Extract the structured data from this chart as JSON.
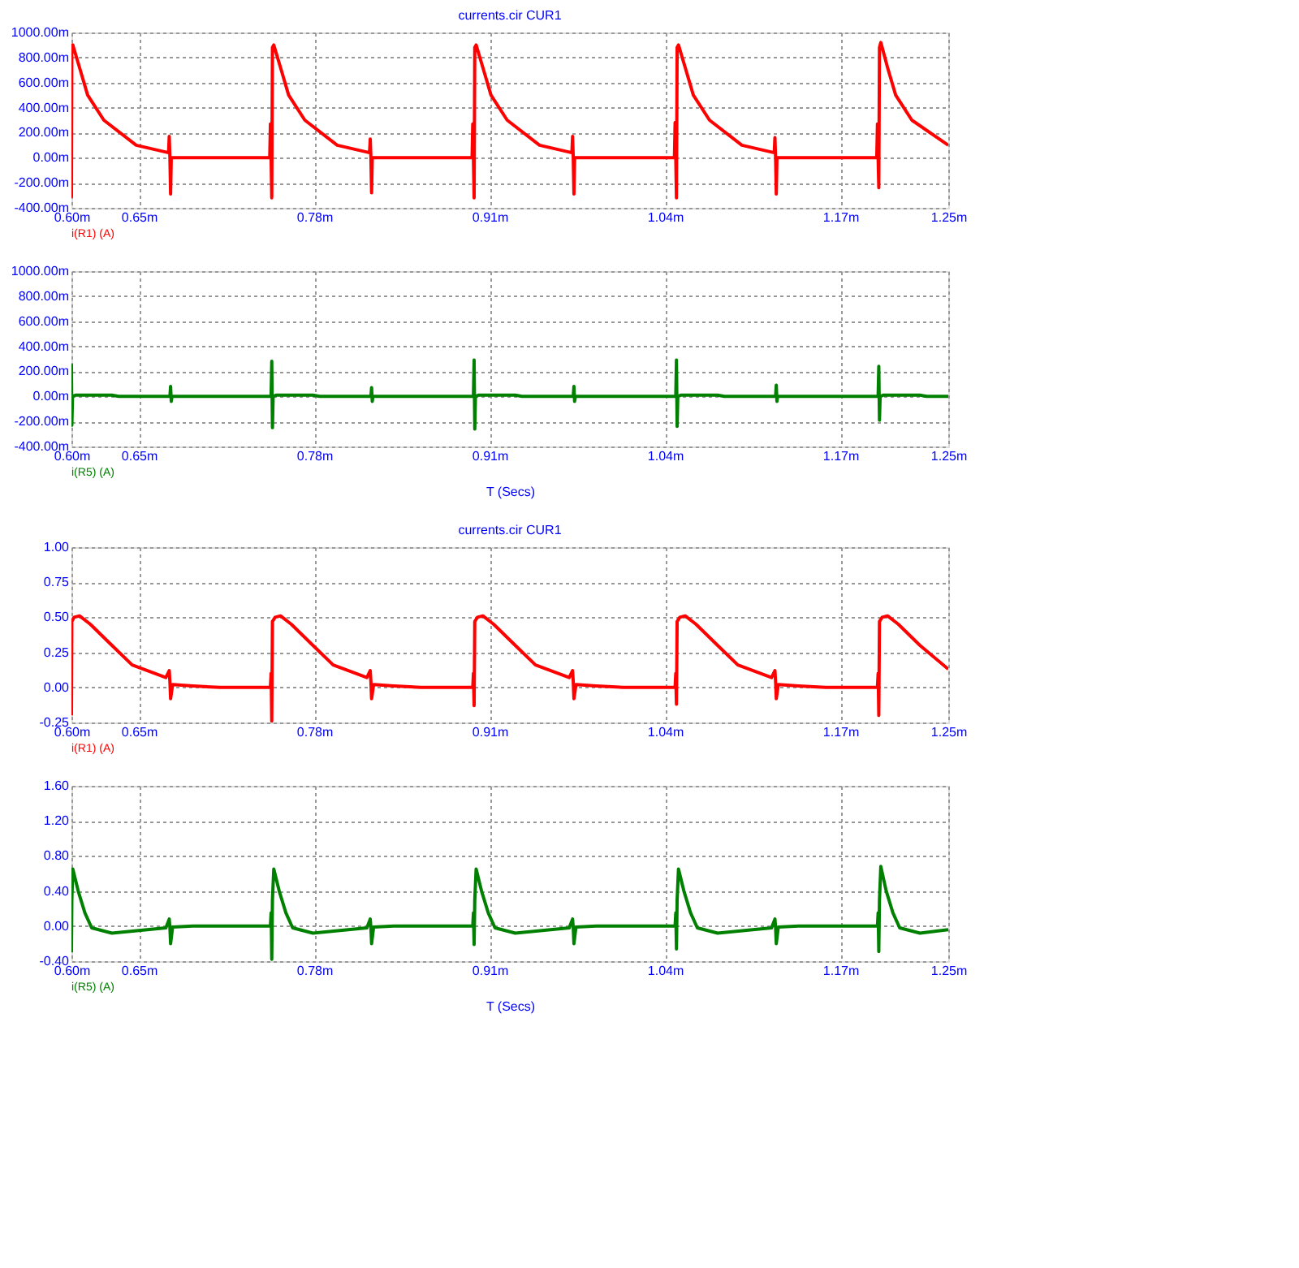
{
  "chart_data": [
    {
      "type": "line",
      "title": "currents.cir CUR1",
      "legend": "bottom left",
      "grid": true,
      "xlim": [
        0.6,
        1.25
      ],
      "xticks": [
        {
          "value": 0.6,
          "label": "0.60m"
        },
        {
          "value": 0.65,
          "label": "0.65m"
        },
        {
          "value": 0.78,
          "label": "0.78m"
        },
        {
          "value": 0.91,
          "label": "0.91m"
        },
        {
          "value": 1.04,
          "label": "1.04m"
        },
        {
          "value": 1.17,
          "label": "1.17m"
        },
        {
          "value": 1.25,
          "label": "1.25m"
        }
      ],
      "ylim": [
        -400,
        1000
      ],
      "yticks": [
        {
          "value": -400,
          "label": "-400.00m"
        },
        {
          "value": -200,
          "label": "-200.00m"
        },
        {
          "value": 0,
          "label": "0.00m"
        },
        {
          "value": 200,
          "label": "200.00m"
        },
        {
          "value": 400,
          "label": "400.00m"
        },
        {
          "value": 600,
          "label": "600.00m"
        },
        {
          "value": 800,
          "label": "800.00m"
        },
        {
          "value": 1000,
          "label": "1000.00m"
        }
      ],
      "series": [
        {
          "name": "i(R1) (A)",
          "color": "#ff0000",
          "x": [
            0.6,
            0.6003,
            0.601,
            0.606,
            0.612,
            0.624,
            0.648,
            0.672,
            0.6725,
            0.673,
            0.6735,
            0.674,
            0.747,
            0.7475,
            0.748,
            0.7485,
            0.749,
            0.75,
            0.755,
            0.761,
            0.773,
            0.797,
            0.821,
            0.8215,
            0.822,
            0.8225,
            0.823,
            0.897,
            0.8975,
            0.898,
            0.8985,
            0.899,
            0.9,
            0.905,
            0.911,
            0.923,
            0.947,
            0.971,
            0.9715,
            0.972,
            0.9725,
            0.973,
            1.047,
            1.0475,
            1.048,
            1.0485,
            1.049,
            1.05,
            1.055,
            1.061,
            1.073,
            1.097,
            1.121,
            1.1215,
            1.122,
            1.1225,
            1.123,
            1.197,
            1.1975,
            1.198,
            1.1985,
            1.199,
            1.2,
            1.205,
            1.211,
            1.223,
            1.25
          ],
          "values": [
            -320,
            880,
            900,
            720,
            500,
            300,
            100,
            40,
            170,
            0,
            -290,
            0,
            0,
            270,
            0,
            -320,
            880,
            900,
            720,
            500,
            300,
            100,
            40,
            150,
            0,
            -280,
            0,
            0,
            270,
            0,
            -320,
            880,
            900,
            720,
            500,
            300,
            100,
            40,
            170,
            0,
            -290,
            0,
            0,
            280,
            0,
            -320,
            880,
            900,
            720,
            500,
            300,
            100,
            40,
            160,
            0,
            -290,
            0,
            0,
            270,
            0,
            -240,
            880,
            920,
            720,
            500,
            300,
            100
          ]
        }
      ]
    },
    {
      "type": "line",
      "xlabel": "T (Secs)",
      "legend": "bottom left",
      "grid": true,
      "xlim": [
        0.6,
        1.25
      ],
      "xticks": [
        {
          "value": 0.6,
          "label": "0.60m"
        },
        {
          "value": 0.65,
          "label": "0.65m"
        },
        {
          "value": 0.78,
          "label": "0.78m"
        },
        {
          "value": 0.91,
          "label": "0.91m"
        },
        {
          "value": 1.04,
          "label": "1.04m"
        },
        {
          "value": 1.17,
          "label": "1.17m"
        },
        {
          "value": 1.25,
          "label": "1.25m"
        }
      ],
      "ylim": [
        -400,
        1000
      ],
      "yticks": [
        {
          "value": -400,
          "label": "-400.00m"
        },
        {
          "value": -200,
          "label": "-200.00m"
        },
        {
          "value": 0,
          "label": "0.00m"
        },
        {
          "value": 200,
          "label": "200.00m"
        },
        {
          "value": 400,
          "label": "400.00m"
        },
        {
          "value": 600,
          "label": "600.00m"
        },
        {
          "value": 800,
          "label": "800.00m"
        },
        {
          "value": 1000,
          "label": "1000.00m"
        }
      ],
      "series": [
        {
          "name": "i(R5) (A)",
          "color": "#008000",
          "x": [
            0.6,
            0.6003,
            0.6008,
            0.603,
            0.63,
            0.635,
            0.673,
            0.6735,
            0.674,
            0.6745,
            0.748,
            0.7485,
            0.749,
            0.7495,
            0.752,
            0.779,
            0.784,
            0.822,
            0.8225,
            0.823,
            0.8235,
            0.898,
            0.8985,
            0.899,
            0.8995,
            0.902,
            0.929,
            0.934,
            0.972,
            0.9725,
            0.973,
            0.9735,
            1.048,
            1.0485,
            1.049,
            1.0495,
            1.052,
            1.079,
            1.084,
            1.122,
            1.1225,
            1.123,
            1.1235,
            1.198,
            1.1985,
            1.199,
            1.1995,
            1.202,
            1.229,
            1.234,
            1.25
          ],
          "values": [
            260,
            -230,
            0,
            10,
            10,
            0,
            0,
            80,
            -40,
            0,
            0,
            280,
            -250,
            0,
            10,
            10,
            0,
            0,
            70,
            -40,
            0,
            0,
            290,
            -260,
            0,
            10,
            10,
            0,
            0,
            80,
            -40,
            0,
            0,
            290,
            -240,
            0,
            10,
            10,
            0,
            0,
            90,
            -40,
            0,
            0,
            240,
            -190,
            0,
            10,
            10,
            0,
            0
          ]
        }
      ]
    },
    {
      "type": "line",
      "title": "currents.cir CUR1",
      "legend": "bottom left",
      "grid": true,
      "xlim": [
        0.6,
        1.25
      ],
      "xticks": [
        {
          "value": 0.6,
          "label": "0.60m"
        },
        {
          "value": 0.65,
          "label": "0.65m"
        },
        {
          "value": 0.78,
          "label": "0.78m"
        },
        {
          "value": 0.91,
          "label": "0.91m"
        },
        {
          "value": 1.04,
          "label": "1.04m"
        },
        {
          "value": 1.17,
          "label": "1.17m"
        },
        {
          "value": 1.25,
          "label": "1.25m"
        }
      ],
      "ylim": [
        -0.25,
        1.0
      ],
      "yticks": [
        {
          "value": -0.25,
          "label": "-0.25"
        },
        {
          "value": 0,
          "label": "0.00"
        },
        {
          "value": 0.25,
          "label": "0.25"
        },
        {
          "value": 0.5,
          "label": "0.50"
        },
        {
          "value": 0.75,
          "label": "0.75"
        },
        {
          "value": 1.0,
          "label": "1.00"
        }
      ],
      "series": [
        {
          "name": "i(R1) (A)",
          "color": "#ff0000",
          "x": [
            0.6,
            0.6003,
            0.602,
            0.606,
            0.614,
            0.63,
            0.645,
            0.67,
            0.6725,
            0.673,
            0.6735,
            0.675,
            0.69,
            0.71,
            0.7475,
            0.748,
            0.7482,
            0.7485,
            0.749,
            0.751,
            0.755,
            0.763,
            0.779,
            0.794,
            0.819,
            0.8215,
            0.822,
            0.8225,
            0.824,
            0.839,
            0.859,
            0.8975,
            0.898,
            0.8982,
            0.8985,
            0.899,
            0.901,
            0.905,
            0.913,
            0.929,
            0.944,
            0.969,
            0.9715,
            0.972,
            0.9725,
            0.974,
            0.989,
            1.009,
            1.0475,
            1.048,
            1.0482,
            1.0485,
            1.049,
            1.051,
            1.055,
            1.063,
            1.079,
            1.094,
            1.119,
            1.1215,
            1.122,
            1.1225,
            1.124,
            1.139,
            1.159,
            1.1975,
            1.198,
            1.1982,
            1.1985,
            1.199,
            1.201,
            1.205,
            1.213,
            1.229,
            1.25
          ],
          "values": [
            -0.2,
            0.47,
            0.5,
            0.51,
            0.45,
            0.3,
            0.16,
            0.07,
            0.12,
            0.04,
            -0.08,
            0.02,
            0.01,
            0.0,
            0,
            0.1,
            0,
            -0.24,
            0.47,
            0.5,
            0.51,
            0.45,
            0.3,
            0.16,
            0.07,
            0.12,
            0.04,
            -0.08,
            0.02,
            0.01,
            0.0,
            0,
            0.1,
            0,
            -0.13,
            0.47,
            0.5,
            0.51,
            0.45,
            0.3,
            0.16,
            0.07,
            0.12,
            0.04,
            -0.08,
            0.02,
            0.01,
            0.0,
            0,
            0.1,
            0,
            -0.12,
            0.47,
            0.5,
            0.51,
            0.45,
            0.3,
            0.16,
            0.07,
            0.12,
            0.04,
            -0.08,
            0.02,
            0.01,
            0.0,
            0,
            0.1,
            0,
            -0.2,
            0.47,
            0.5,
            0.51,
            0.45,
            0.3,
            0.13
          ]
        }
      ]
    },
    {
      "type": "line",
      "xlabel": "T (Secs)",
      "legend": "bottom left",
      "grid": true,
      "xlim": [
        0.6,
        1.25
      ],
      "xticks": [
        {
          "value": 0.6,
          "label": "0.60m"
        },
        {
          "value": 0.65,
          "label": "0.65m"
        },
        {
          "value": 0.78,
          "label": "0.78m"
        },
        {
          "value": 0.91,
          "label": "0.91m"
        },
        {
          "value": 1.04,
          "label": "1.04m"
        },
        {
          "value": 1.17,
          "label": "1.17m"
        },
        {
          "value": 1.25,
          "label": "1.25m"
        }
      ],
      "ylim": [
        -0.4,
        1.6
      ],
      "yticks": [
        {
          "value": -0.4,
          "label": "-0.40"
        },
        {
          "value": 0,
          "label": "0.00"
        },
        {
          "value": 0.4,
          "label": "0.40"
        },
        {
          "value": 0.8,
          "label": "0.80"
        },
        {
          "value": 1.2,
          "label": "1.20"
        },
        {
          "value": 1.6,
          "label": "1.60"
        }
      ],
      "series": [
        {
          "name": "i(R5) (A)",
          "color": "#008000",
          "x": [
            0.6,
            0.6003,
            0.601,
            0.605,
            0.61,
            0.615,
            0.63,
            0.67,
            0.6725,
            0.673,
            0.6735,
            0.675,
            0.69,
            0.7475,
            0.748,
            0.7482,
            0.7485,
            0.749,
            0.75,
            0.754,
            0.759,
            0.764,
            0.779,
            0.819,
            0.8215,
            0.822,
            0.8225,
            0.824,
            0.839,
            0.8975,
            0.898,
            0.8982,
            0.8985,
            0.899,
            0.9,
            0.904,
            0.909,
            0.914,
            0.929,
            0.969,
            0.9715,
            0.972,
            0.9725,
            0.974,
            0.989,
            1.0475,
            1.048,
            1.0482,
            1.0485,
            1.049,
            1.05,
            1.054,
            1.059,
            1.064,
            1.079,
            1.119,
            1.1215,
            1.122,
            1.1225,
            1.124,
            1.139,
            1.1975,
            1.198,
            1.1982,
            1.1985,
            1.199,
            1.2,
            1.204,
            1.209,
            1.214,
            1.229,
            1.25
          ],
          "values": [
            -0.3,
            0.3,
            0.65,
            0.4,
            0.15,
            -0.02,
            -0.08,
            -0.02,
            0.08,
            -0.02,
            -0.2,
            -0.01,
            0.0,
            0,
            0.15,
            0,
            -0.38,
            0.3,
            0.65,
            0.4,
            0.15,
            -0.02,
            -0.08,
            -0.02,
            0.08,
            -0.02,
            -0.2,
            -0.01,
            0.0,
            0,
            0.15,
            0,
            -0.21,
            0.3,
            0.65,
            0.4,
            0.15,
            -0.02,
            -0.08,
            -0.02,
            0.08,
            -0.02,
            -0.2,
            -0.01,
            0.0,
            0,
            0.15,
            0,
            -0.26,
            0.3,
            0.65,
            0.4,
            0.15,
            -0.02,
            -0.08,
            -0.02,
            0.08,
            -0.02,
            -0.2,
            -0.01,
            0.0,
            0,
            0.15,
            0,
            -0.29,
            0.3,
            0.68,
            0.4,
            0.15,
            -0.02,
            -0.08,
            -0.04
          ]
        }
      ]
    }
  ]
}
